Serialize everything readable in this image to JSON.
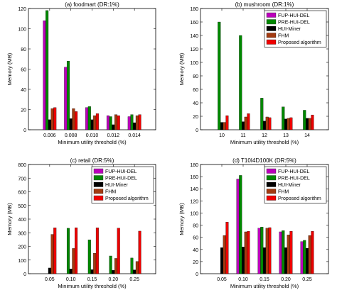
{
  "colors": {
    "series": [
      "#bb00bb",
      "#008800",
      "#000000",
      "#a33a10",
      "#ee0000"
    ],
    "axis": "#000000",
    "background": "#ffffff"
  },
  "chart_data": [
    {
      "type": "bar",
      "title": "(a) foodmart (DR:1%)",
      "xlabel": "Minimum utility threshold (%)",
      "ylabel": "Memory (MB)",
      "categories": [
        "0.006",
        "0.008",
        "0.010",
        "0.012",
        "0.014"
      ],
      "ylim": [
        0,
        120
      ],
      "yticks": [
        0,
        20,
        40,
        60,
        80,
        100,
        120
      ],
      "legend": null,
      "series": [
        {
          "name": "FUP-HUI-DEL",
          "values": [
            108,
            62,
            22,
            14,
            13
          ]
        },
        {
          "name": "PRE-HUI-DEL",
          "values": [
            118,
            68,
            23,
            13,
            15
          ]
        },
        {
          "name": "HUI-Miner",
          "values": [
            10,
            11,
            10,
            5,
            7
          ]
        },
        {
          "name": "FHM",
          "values": [
            21,
            21,
            14,
            15,
            14
          ]
        },
        {
          "name": "Proposed algorithm",
          "values": [
            22,
            18,
            16,
            14,
            15
          ]
        }
      ]
    },
    {
      "type": "bar",
      "title": "(b) mushroom (DR:1%)",
      "xlabel": "Minimum utility threshold (%)",
      "ylabel": "Memory (MB)",
      "categories": [
        "10",
        "11",
        "12",
        "13",
        "14"
      ],
      "ylim": [
        0,
        180
      ],
      "yticks": [
        0,
        20,
        40,
        60,
        80,
        100,
        120,
        140,
        160,
        180
      ],
      "legend": {
        "placement": "top-right",
        "entries": [
          "FUP-HUI-DEL",
          "PRE-HUI-DEL",
          "HUI-Miner",
          "FHM",
          "Proposed algorithm"
        ]
      },
      "series": [
        {
          "name": "FUP-HUI-DEL",
          "values": [
            0,
            0,
            0,
            0,
            0
          ]
        },
        {
          "name": "PRE-HUI-DEL",
          "values": [
            160,
            140,
            47,
            34,
            29
          ]
        },
        {
          "name": "HUI-Miner",
          "values": [
            11,
            12,
            13,
            16,
            17
          ]
        },
        {
          "name": "FHM",
          "values": [
            11,
            19,
            19,
            17,
            17
          ]
        },
        {
          "name": "Proposed algorithm",
          "values": [
            21,
            24,
            18,
            18,
            22
          ]
        }
      ]
    },
    {
      "type": "bar",
      "title": "(c) retail (DR:5%)",
      "xlabel": "Minimum utility threshold (%)",
      "ylabel": "Memory (MB)",
      "categories": [
        "0.05",
        "0.10",
        "0.15",
        "0.20",
        "0.25"
      ],
      "ylim": [
        0,
        800
      ],
      "yticks": [
        0,
        100,
        200,
        300,
        400,
        500,
        600,
        700,
        800
      ],
      "legend": {
        "placement": "top-right",
        "entries": [
          "FUP-HUI-DEL",
          "PRE-HUI-DEL",
          "HUI-Miner",
          "FHM",
          "Proposed algorithm"
        ]
      },
      "series": [
        {
          "name": "FUP-HUI-DEL",
          "values": [
            0,
            0,
            0,
            0,
            0
          ]
        },
        {
          "name": "PRE-HUI-DEL",
          "values": [
            0,
            333,
            248,
            130,
            115
          ]
        },
        {
          "name": "HUI-Miner",
          "values": [
            42,
            35,
            30,
            25,
            28
          ]
        },
        {
          "name": "FHM",
          "values": [
            288,
            185,
            150,
            112,
            90
          ]
        },
        {
          "name": "Proposed algorithm",
          "values": [
            336,
            337,
            336,
            334,
            312
          ]
        }
      ]
    },
    {
      "type": "bar",
      "title": "(d) T10I4D100K (DR:5%)",
      "xlabel": "Minimum utility threshold (%)",
      "ylabel": "Memory (MB)",
      "categories": [
        "0.05",
        "0.10",
        "0.15",
        "0.20",
        "0.25"
      ],
      "ylim": [
        0,
        180
      ],
      "yticks": [
        0,
        20,
        40,
        60,
        80,
        100,
        120,
        140,
        160,
        180
      ],
      "legend": {
        "placement": "top-right",
        "entries": [
          "FUP-HUI-DEL",
          "PRE-HUI-DEL",
          "HUI-Miner",
          "FHM",
          "Proposed algorithm"
        ]
      },
      "series": [
        {
          "name": "FUP-HUI-DEL",
          "values": [
            0,
            156,
            75,
            69,
            53
          ]
        },
        {
          "name": "PRE-HUI-DEL",
          "values": [
            0,
            162,
            77,
            71,
            55
          ]
        },
        {
          "name": "HUI-Miner",
          "values": [
            43,
            44,
            43,
            43,
            42
          ]
        },
        {
          "name": "FHM",
          "values": [
            63,
            69,
            75,
            64,
            63
          ]
        },
        {
          "name": "Proposed algorithm",
          "values": [
            85,
            70,
            76,
            70,
            70
          ]
        }
      ]
    }
  ]
}
